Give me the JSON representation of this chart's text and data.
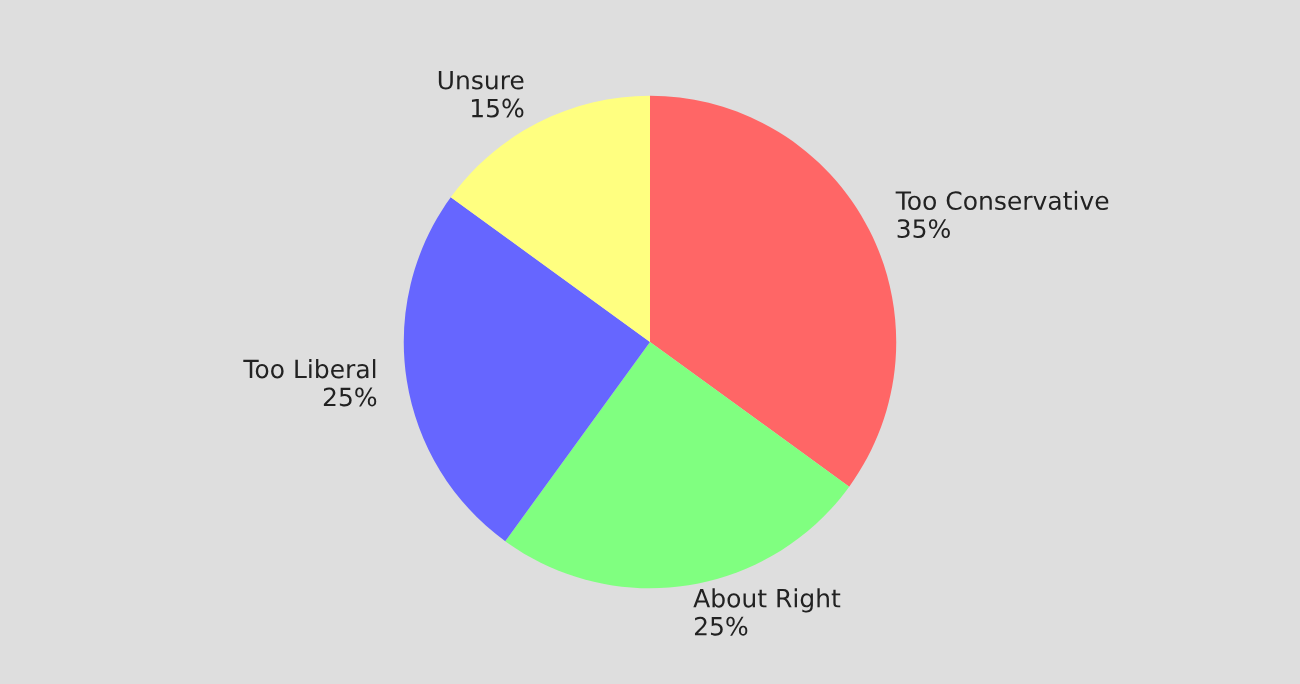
{
  "chart_data": {
    "type": "pie",
    "categories": [
      "Too Conservative",
      "About Right",
      "Too Liberal",
      "Unsure"
    ],
    "values": [
      35,
      25,
      25,
      15
    ],
    "value_labels": [
      "35%",
      "25%",
      "25%",
      "15%"
    ],
    "colors": [
      "#ff6666",
      "#80ff80",
      "#6666ff",
      "#ffff80"
    ],
    "legend": false
  }
}
